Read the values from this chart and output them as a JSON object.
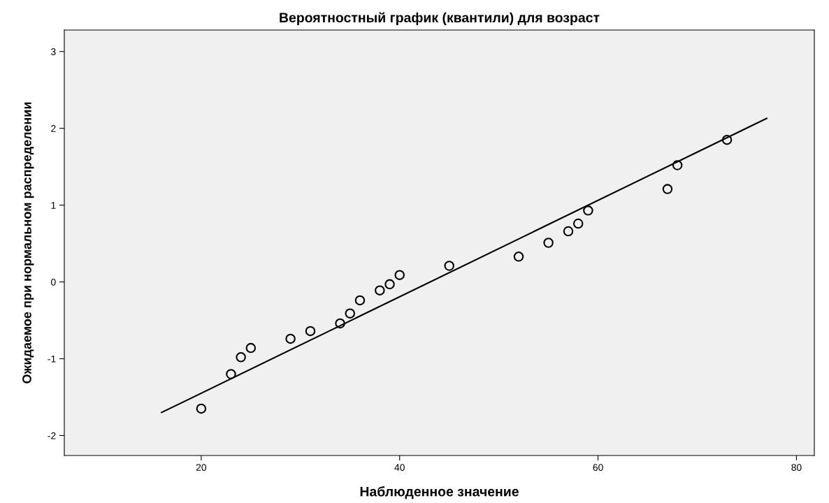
{
  "chart_data": {
    "type": "scatter",
    "title": "Вероятностный график (квантили) для возраст",
    "xlabel": "Наблюденное значение",
    "ylabel": "Ожидаемое при нормальном распределении",
    "xlim": [
      6.2,
      81.8
    ],
    "xticks": [
      20,
      40,
      60,
      80
    ],
    "ylim": [
      -2.26,
      3.28
    ],
    "yticks": [
      -2,
      -1,
      0,
      1,
      2,
      3
    ],
    "grid": false,
    "legend": false,
    "series": [
      {
        "marker": "circle",
        "color": "#000000",
        "x": [
          20,
          23,
          24,
          25,
          29,
          31,
          34,
          35,
          36,
          38,
          39,
          40,
          45,
          52,
          55,
          57,
          58,
          59,
          67,
          68,
          73
        ],
        "values": [
          -1.65,
          -1.2,
          -0.98,
          -0.86,
          -0.74,
          -0.64,
          -0.54,
          -0.41,
          -0.24,
          -0.11,
          -0.03,
          0.09,
          0.21,
          0.33,
          0.51,
          0.66,
          0.76,
          0.93,
          1.21,
          1.52,
          1.85
        ]
      },
      {
        "type": "line",
        "color": "#000000",
        "x": [
          16,
          77
        ],
        "values": [
          -1.7,
          2.13
        ],
        "line_style": "solid"
      }
    ]
  }
}
